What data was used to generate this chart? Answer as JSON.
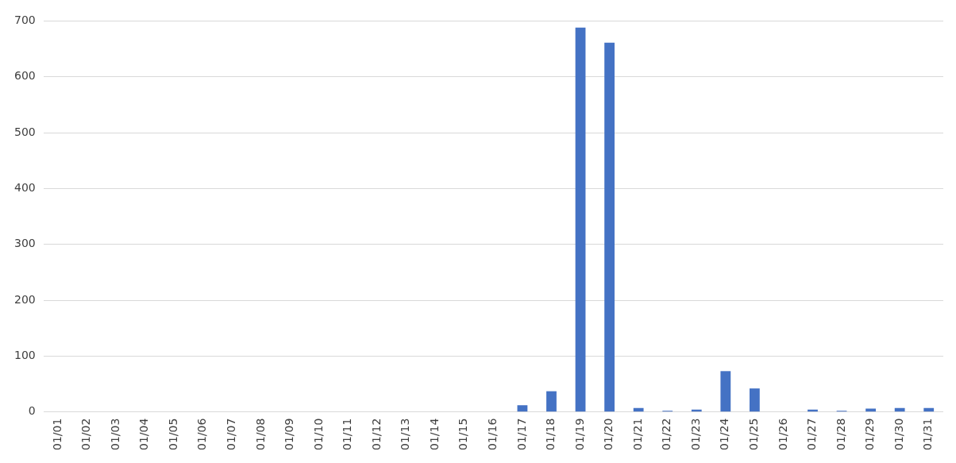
{
  "chart_data": {
    "type": "bar",
    "categories": [
      "01/01",
      "01/02",
      "01/03",
      "01/04",
      "01/05",
      "01/06",
      "01/07",
      "01/08",
      "01/09",
      "01/10",
      "01/11",
      "01/12",
      "01/13",
      "01/14",
      "01/15",
      "01/16",
      "01/17",
      "01/18",
      "01/19",
      "01/20",
      "01/21",
      "01/22",
      "01/23",
      "01/24",
      "01/25",
      "01/26",
      "01/27",
      "01/28",
      "01/29",
      "01/30",
      "01/31"
    ],
    "values": [
      0,
      0,
      0,
      0,
      0,
      0,
      0,
      0,
      0,
      0,
      0,
      0,
      0,
      0,
      0,
      0,
      12,
      37,
      688,
      661,
      7,
      2,
      4,
      73,
      42,
      0,
      4,
      2,
      6,
      7,
      7
    ],
    "color": "#4472c4",
    "ylim": [
      0,
      700
    ],
    "yticks": [
      0,
      100,
      200,
      300,
      400,
      500,
      600,
      700
    ],
    "grid": "y"
  }
}
